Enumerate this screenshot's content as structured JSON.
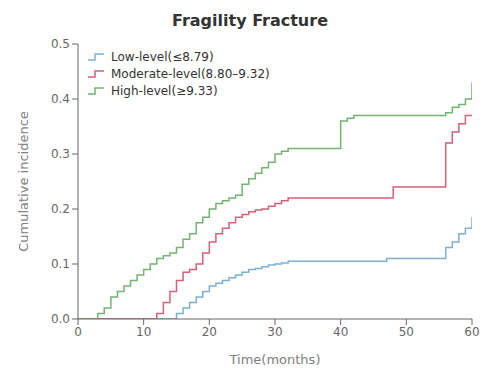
{
  "chart_data": {
    "type": "step",
    "title": "Fragility Fracture",
    "x_label": "Time(months)",
    "y_label": "Cumulative incidence",
    "xlim": [
      0,
      60
    ],
    "ylim": [
      0,
      0.5
    ],
    "xticks": [
      0,
      10,
      20,
      30,
      40,
      50,
      60
    ],
    "yticks": [
      {
        "value": 0,
        "label": "0.0"
      },
      0.1,
      0.2,
      0.3,
      0.4,
      0.5
    ],
    "grid": false,
    "legend": "upper left",
    "series": [
      {
        "name": "Low-level(≤8.79)",
        "color": "#7bafd4",
        "x": [
          0,
          14,
          15,
          16,
          17,
          18,
          19,
          20,
          21,
          22,
          23,
          24,
          25,
          26,
          27,
          28,
          29,
          30,
          31,
          32,
          40,
          47,
          55,
          56,
          57,
          58,
          59,
          60
        ],
        "values": [
          0,
          0,
          0.01,
          0.02,
          0.03,
          0.04,
          0.05,
          0.06,
          0.065,
          0.07,
          0.075,
          0.08,
          0.085,
          0.09,
          0.092,
          0.095,
          0.098,
          0.1,
          0.102,
          0.105,
          0.105,
          0.11,
          0.11,
          0.13,
          0.14,
          0.155,
          0.165,
          0.185
        ]
      },
      {
        "name": "Moderate-level(8.80–9.32)",
        "color": "#d4607a",
        "x": [
          0,
          11,
          12,
          13,
          14,
          15,
          16,
          17,
          18,
          19,
          20,
          21,
          22,
          23,
          24,
          25,
          26,
          27,
          28,
          29,
          30,
          31,
          32,
          47,
          48,
          55,
          56,
          57,
          58,
          59,
          60
        ],
        "values": [
          0,
          0,
          0.01,
          0.03,
          0.05,
          0.07,
          0.085,
          0.09,
          0.1,
          0.12,
          0.14,
          0.155,
          0.165,
          0.175,
          0.185,
          0.19,
          0.195,
          0.198,
          0.2,
          0.205,
          0.21,
          0.215,
          0.22,
          0.22,
          0.24,
          0.24,
          0.32,
          0.34,
          0.355,
          0.37,
          0.37
        ]
      },
      {
        "name": "High-level(≥9.33)",
        "color": "#72b472",
        "x": [
          0,
          3,
          4,
          5,
          6,
          7,
          8,
          9,
          10,
          11,
          12,
          13,
          14,
          15,
          16,
          17,
          18,
          19,
          20,
          21,
          22,
          23,
          24,
          25,
          26,
          27,
          28,
          29,
          30,
          31,
          32,
          40,
          41,
          42,
          55,
          56,
          57,
          58,
          59,
          60
        ],
        "values": [
          0,
          0.01,
          0.02,
          0.04,
          0.05,
          0.06,
          0.07,
          0.08,
          0.09,
          0.1,
          0.11,
          0.115,
          0.12,
          0.13,
          0.145,
          0.155,
          0.175,
          0.185,
          0.2,
          0.21,
          0.215,
          0.22,
          0.225,
          0.245,
          0.255,
          0.265,
          0.275,
          0.285,
          0.3,
          0.305,
          0.31,
          0.36,
          0.365,
          0.37,
          0.37,
          0.375,
          0.385,
          0.39,
          0.4,
          0.43
        ]
      }
    ]
  }
}
